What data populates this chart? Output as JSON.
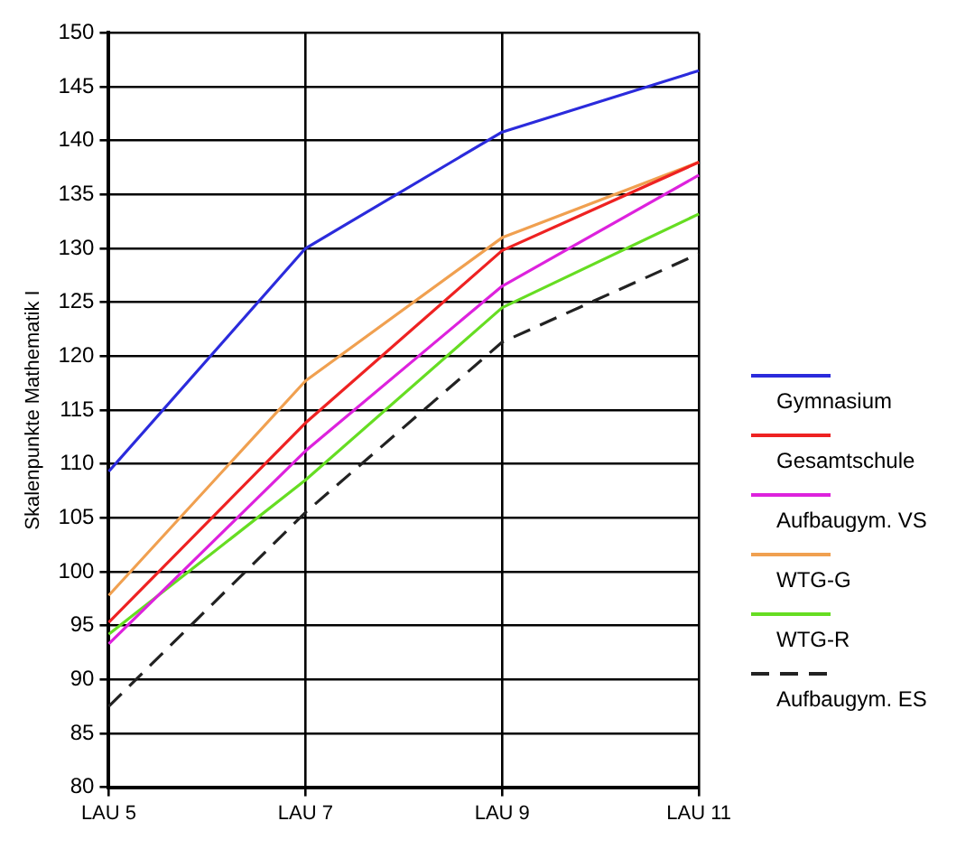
{
  "chart_data": {
    "type": "line",
    "ylabel": "Skalenpunkte Mathematik I",
    "categories": [
      "LAU 5",
      "LAU 7",
      "LAU 9",
      "LAU 11"
    ],
    "ylim": [
      80,
      150
    ],
    "yticks": [
      80,
      85,
      90,
      95,
      100,
      105,
      110,
      115,
      120,
      125,
      130,
      135,
      140,
      145,
      150
    ],
    "grid": true,
    "legend": "right",
    "marker": "none",
    "series": [
      {
        "name": "Gymnasium",
        "color": "#2b2bdc",
        "values": [
          109.3,
          130,
          140.8,
          146.5
        ]
      },
      {
        "name": "Gesamtschule",
        "color": "#ee2222",
        "values": [
          95.3,
          113.8,
          129.8,
          138
        ]
      },
      {
        "name": "Aufbaugym. VS",
        "color": "#dd22dd",
        "values": [
          93.3,
          111.2,
          126.5,
          136.8
        ]
      },
      {
        "name": "WTG-G",
        "color": "#f0a050",
        "values": [
          97.8,
          117.7,
          131,
          138
        ]
      },
      {
        "name": "WTG-R",
        "color": "#66dd22",
        "values": [
          94.2,
          108.5,
          124.5,
          133.2
        ]
      },
      {
        "name": "Aufbaugym. ES",
        "color": "#222222",
        "line_style": "dashed",
        "values": [
          87.5,
          105.5,
          121.3,
          129.5
        ]
      }
    ]
  }
}
